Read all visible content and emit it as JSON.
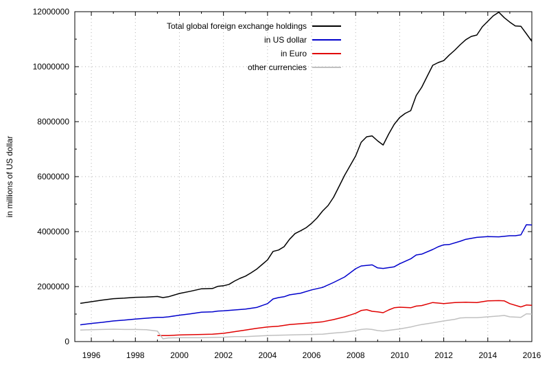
{
  "chart_data": {
    "type": "line",
    "title": "",
    "xlabel": "",
    "ylabel": "in millions of US dollar",
    "xlim": [
      1995.25,
      2016
    ],
    "ylim": [
      0,
      12000000
    ],
    "x_ticks": [
      "1996",
      "1998",
      "2000",
      "2002",
      "2004",
      "2006",
      "2008",
      "2010",
      "2012",
      "2014",
      "2016"
    ],
    "y_ticks": [
      "0",
      "2000000",
      "4000000",
      "6000000",
      "8000000",
      "10000000",
      "12000000"
    ],
    "grid": true,
    "legend_position": "top-right",
    "series": [
      {
        "name": "Total global foreign exchange holdings",
        "color": "#000000",
        "points": [
          [
            1995.5,
            1390000
          ],
          [
            1996.0,
            1450000
          ],
          [
            1996.5,
            1510000
          ],
          [
            1997.0,
            1560000
          ],
          [
            1997.5,
            1580000
          ],
          [
            1998.0,
            1610000
          ],
          [
            1998.5,
            1620000
          ],
          [
            1999.0,
            1640000
          ],
          [
            1999.25,
            1600000
          ],
          [
            1999.5,
            1630000
          ],
          [
            2000.0,
            1750000
          ],
          [
            2000.5,
            1830000
          ],
          [
            2001.0,
            1920000
          ],
          [
            2001.5,
            1930000
          ],
          [
            2001.75,
            2010000
          ],
          [
            2002.0,
            2030000
          ],
          [
            2002.25,
            2080000
          ],
          [
            2002.5,
            2200000
          ],
          [
            2002.75,
            2300000
          ],
          [
            2003.0,
            2380000
          ],
          [
            2003.25,
            2500000
          ],
          [
            2003.5,
            2630000
          ],
          [
            2003.75,
            2800000
          ],
          [
            2004.0,
            2970000
          ],
          [
            2004.25,
            3280000
          ],
          [
            2004.5,
            3330000
          ],
          [
            2004.75,
            3450000
          ],
          [
            2005.0,
            3720000
          ],
          [
            2005.25,
            3930000
          ],
          [
            2005.5,
            4030000
          ],
          [
            2005.75,
            4140000
          ],
          [
            2006.0,
            4300000
          ],
          [
            2006.25,
            4500000
          ],
          [
            2006.5,
            4750000
          ],
          [
            2006.75,
            4950000
          ],
          [
            2007.0,
            5250000
          ],
          [
            2007.25,
            5650000
          ],
          [
            2007.5,
            6050000
          ],
          [
            2007.75,
            6400000
          ],
          [
            2008.0,
            6750000
          ],
          [
            2008.25,
            7250000
          ],
          [
            2008.5,
            7450000
          ],
          [
            2008.75,
            7480000
          ],
          [
            2009.0,
            7300000
          ],
          [
            2009.25,
            7150000
          ],
          [
            2009.5,
            7550000
          ],
          [
            2009.75,
            7900000
          ],
          [
            2010.0,
            8150000
          ],
          [
            2010.25,
            8300000
          ],
          [
            2010.5,
            8400000
          ],
          [
            2010.75,
            8950000
          ],
          [
            2011.0,
            9250000
          ],
          [
            2011.25,
            9650000
          ],
          [
            2011.5,
            10050000
          ],
          [
            2011.75,
            10150000
          ],
          [
            2012.0,
            10220000
          ],
          [
            2012.25,
            10420000
          ],
          [
            2012.5,
            10600000
          ],
          [
            2012.75,
            10800000
          ],
          [
            2013.0,
            10980000
          ],
          [
            2013.25,
            11100000
          ],
          [
            2013.5,
            11150000
          ],
          [
            2013.75,
            11450000
          ],
          [
            2014.0,
            11650000
          ],
          [
            2014.25,
            11850000
          ],
          [
            2014.5,
            11980000
          ],
          [
            2014.75,
            11780000
          ],
          [
            2015.0,
            11620000
          ],
          [
            2015.25,
            11480000
          ],
          [
            2015.5,
            11470000
          ],
          [
            2015.75,
            11200000
          ],
          [
            2016.0,
            10920000
          ]
        ]
      },
      {
        "name": "in US dollar",
        "color": "#0000cc",
        "points": [
          [
            1995.5,
            610000
          ],
          [
            1996.0,
            660000
          ],
          [
            1996.5,
            700000
          ],
          [
            1997.0,
            750000
          ],
          [
            1997.5,
            780000
          ],
          [
            1998.0,
            820000
          ],
          [
            1998.5,
            850000
          ],
          [
            1999.0,
            880000
          ],
          [
            1999.25,
            880000
          ],
          [
            1999.5,
            900000
          ],
          [
            2000.0,
            960000
          ],
          [
            2000.5,
            1010000
          ],
          [
            2001.0,
            1070000
          ],
          [
            2001.5,
            1080000
          ],
          [
            2001.75,
            1110000
          ],
          [
            2002.0,
            1120000
          ],
          [
            2002.5,
            1150000
          ],
          [
            2003.0,
            1180000
          ],
          [
            2003.5,
            1240000
          ],
          [
            2004.0,
            1380000
          ],
          [
            2004.25,
            1550000
          ],
          [
            2004.5,
            1600000
          ],
          [
            2004.75,
            1630000
          ],
          [
            2005.0,
            1700000
          ],
          [
            2005.5,
            1760000
          ],
          [
            2006.0,
            1880000
          ],
          [
            2006.5,
            1970000
          ],
          [
            2007.0,
            2150000
          ],
          [
            2007.5,
            2350000
          ],
          [
            2008.0,
            2650000
          ],
          [
            2008.25,
            2750000
          ],
          [
            2008.75,
            2790000
          ],
          [
            2009.0,
            2680000
          ],
          [
            2009.25,
            2660000
          ],
          [
            2009.75,
            2720000
          ],
          [
            2010.0,
            2830000
          ],
          [
            2010.5,
            3010000
          ],
          [
            2010.75,
            3150000
          ],
          [
            2011.0,
            3180000
          ],
          [
            2011.5,
            3350000
          ],
          [
            2011.75,
            3450000
          ],
          [
            2012.0,
            3520000
          ],
          [
            2012.25,
            3530000
          ],
          [
            2012.75,
            3650000
          ],
          [
            2013.0,
            3720000
          ],
          [
            2013.5,
            3790000
          ],
          [
            2014.0,
            3820000
          ],
          [
            2014.5,
            3810000
          ],
          [
            2015.0,
            3850000
          ],
          [
            2015.25,
            3850000
          ],
          [
            2015.5,
            3880000
          ],
          [
            2015.75,
            4250000
          ],
          [
            2016.0,
            4240000
          ],
          [
            2016.1,
            4330000
          ]
        ]
      },
      {
        "name": "in Euro",
        "color": "#e00000",
        "points": [
          [
            1999.0,
            220000
          ],
          [
            1999.5,
            220000
          ],
          [
            2000.0,
            240000
          ],
          [
            2000.5,
            250000
          ],
          [
            2001.0,
            260000
          ],
          [
            2001.5,
            270000
          ],
          [
            2002.0,
            300000
          ],
          [
            2002.5,
            360000
          ],
          [
            2003.0,
            420000
          ],
          [
            2003.5,
            480000
          ],
          [
            2004.0,
            530000
          ],
          [
            2004.5,
            560000
          ],
          [
            2005.0,
            620000
          ],
          [
            2005.5,
            650000
          ],
          [
            2006.0,
            680000
          ],
          [
            2006.5,
            720000
          ],
          [
            2007.0,
            800000
          ],
          [
            2007.5,
            900000
          ],
          [
            2008.0,
            1030000
          ],
          [
            2008.25,
            1130000
          ],
          [
            2008.5,
            1160000
          ],
          [
            2008.75,
            1100000
          ],
          [
            2009.0,
            1080000
          ],
          [
            2009.25,
            1050000
          ],
          [
            2009.5,
            1150000
          ],
          [
            2009.75,
            1230000
          ],
          [
            2010.0,
            1250000
          ],
          [
            2010.5,
            1230000
          ],
          [
            2010.75,
            1290000
          ],
          [
            2011.0,
            1310000
          ],
          [
            2011.5,
            1420000
          ],
          [
            2012.0,
            1380000
          ],
          [
            2012.5,
            1420000
          ],
          [
            2013.0,
            1430000
          ],
          [
            2013.5,
            1420000
          ],
          [
            2014.0,
            1480000
          ],
          [
            2014.5,
            1490000
          ],
          [
            2014.75,
            1480000
          ],
          [
            2015.0,
            1380000
          ],
          [
            2015.5,
            1260000
          ],
          [
            2015.75,
            1330000
          ],
          [
            2016.0,
            1320000
          ]
        ]
      },
      {
        "name": "other currencies",
        "color": "#c0c0c0",
        "points": [
          [
            1995.5,
            420000
          ],
          [
            1996.0,
            430000
          ],
          [
            1996.5,
            440000
          ],
          [
            1997.0,
            450000
          ],
          [
            1997.5,
            440000
          ],
          [
            1998.0,
            440000
          ],
          [
            1998.5,
            430000
          ],
          [
            1999.0,
            380000
          ],
          [
            1999.25,
            100000
          ],
          [
            1999.5,
            130000
          ],
          [
            2000.0,
            140000
          ],
          [
            2000.5,
            140000
          ],
          [
            2001.0,
            140000
          ],
          [
            2001.5,
            150000
          ],
          [
            2002.0,
            160000
          ],
          [
            2002.5,
            180000
          ],
          [
            2003.0,
            180000
          ],
          [
            2003.5,
            200000
          ],
          [
            2004.0,
            220000
          ],
          [
            2004.5,
            230000
          ],
          [
            2005.0,
            240000
          ],
          [
            2005.5,
            250000
          ],
          [
            2006.0,
            260000
          ],
          [
            2006.5,
            270000
          ],
          [
            2007.0,
            310000
          ],
          [
            2007.5,
            340000
          ],
          [
            2008.0,
            400000
          ],
          [
            2008.25,
            440000
          ],
          [
            2008.5,
            460000
          ],
          [
            2008.75,
            440000
          ],
          [
            2009.0,
            400000
          ],
          [
            2009.25,
            380000
          ],
          [
            2009.5,
            410000
          ],
          [
            2010.0,
            460000
          ],
          [
            2010.5,
            530000
          ],
          [
            2010.75,
            580000
          ],
          [
            2011.0,
            620000
          ],
          [
            2011.5,
            680000
          ],
          [
            2012.0,
            750000
          ],
          [
            2012.5,
            810000
          ],
          [
            2012.75,
            860000
          ],
          [
            2013.0,
            870000
          ],
          [
            2013.5,
            870000
          ],
          [
            2014.0,
            900000
          ],
          [
            2014.5,
            930000
          ],
          [
            2014.75,
            950000
          ],
          [
            2015.0,
            900000
          ],
          [
            2015.5,
            880000
          ],
          [
            2015.75,
            1010000
          ],
          [
            2016.0,
            1000000
          ]
        ]
      }
    ]
  }
}
